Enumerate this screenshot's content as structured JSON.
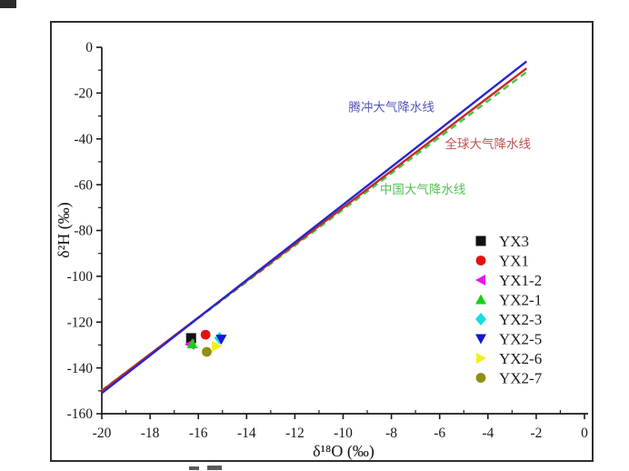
{
  "figure": {
    "background": "#ffffff",
    "border_color": "#2f2f2f"
  },
  "chart_data": {
    "type": "scatter",
    "title": "",
    "xlabel": "δ¹⁸O (‰)",
    "ylabel": "δ²H (‰)",
    "xlim": [
      -20,
      0
    ],
    "ylim": [
      -160,
      0
    ],
    "x_major_ticks": [
      -20,
      -18,
      -16,
      -14,
      -12,
      -10,
      -8,
      -6,
      -4,
      -2,
      0
    ],
    "y_major_ticks": [
      0,
      -20,
      -40,
      -60,
      -80,
      -100,
      -120,
      -140,
      -160
    ],
    "x_minor_step": 1,
    "y_minor_step": 10,
    "grid": false,
    "axis_color": "#1a1a1a",
    "reference_lines": [
      {
        "name": "腾冲大气降水线",
        "color": "#2626cc",
        "style": "solid",
        "points": [
          [
            -20,
            -151
          ],
          [
            -2.4,
            -6.2
          ]
        ],
        "label": {
          "text": "腾冲大气降水线",
          "x": -8.0,
          "y": -28,
          "color": "#5555bb"
        }
      },
      {
        "name": "全球大气降水线",
        "color": "#c62828",
        "style": "solid",
        "points": [
          [
            -20,
            -150
          ],
          [
            -2.4,
            -9.2
          ]
        ],
        "label": {
          "text": "全球大气降水线",
          "x": -4.0,
          "y": -44,
          "color": "#c05050"
        }
      },
      {
        "name": "中国大气降水线",
        "color": "#3dcc3d",
        "style": "dashed",
        "points": [
          [
            -20,
            -149.8
          ],
          [
            -2.4,
            -10.8
          ]
        ],
        "label": {
          "text": "中国大气降水线",
          "x": -6.7,
          "y": -64,
          "color": "#55c055"
        }
      }
    ],
    "series": [
      {
        "name": "YX3",
        "marker": "square",
        "color": "#111111",
        "points": [
          [
            -16.3,
            -127.0
          ]
        ]
      },
      {
        "name": "YX1",
        "marker": "circle",
        "color": "#e31212",
        "points": [
          [
            -15.7,
            -125.5
          ]
        ]
      },
      {
        "name": "YX1-2",
        "marker": "triangle-left",
        "color": "#e518e5",
        "points": [
          [
            -16.35,
            -129.7
          ]
        ]
      },
      {
        "name": "YX2-1",
        "marker": "triangle-up",
        "color": "#17cf17",
        "points": [
          [
            -16.25,
            -129.5
          ]
        ]
      },
      {
        "name": "YX2-3",
        "marker": "diamond",
        "color": "#17dede",
        "points": [
          [
            -15.12,
            -127.0
          ]
        ]
      },
      {
        "name": "YX2-5",
        "marker": "triangle-down",
        "color": "#1717d6",
        "points": [
          [
            -15.05,
            -127.5
          ]
        ]
      },
      {
        "name": "YX2-6",
        "marker": "triangle-right",
        "color": "#f0f014",
        "points": [
          [
            -15.25,
            -130.5
          ]
        ]
      },
      {
        "name": "YX2-7",
        "marker": "circle",
        "color": "#8f8f12",
        "points": [
          [
            -15.65,
            -133.0
          ]
        ]
      }
    ],
    "legend": {
      "position": "lower-right",
      "border": false,
      "entries": [
        "YX3",
        "YX1",
        "YX1-2",
        "YX2-1",
        "YX2-3",
        "YX2-5",
        "YX2-6",
        "YX2-7"
      ]
    }
  }
}
